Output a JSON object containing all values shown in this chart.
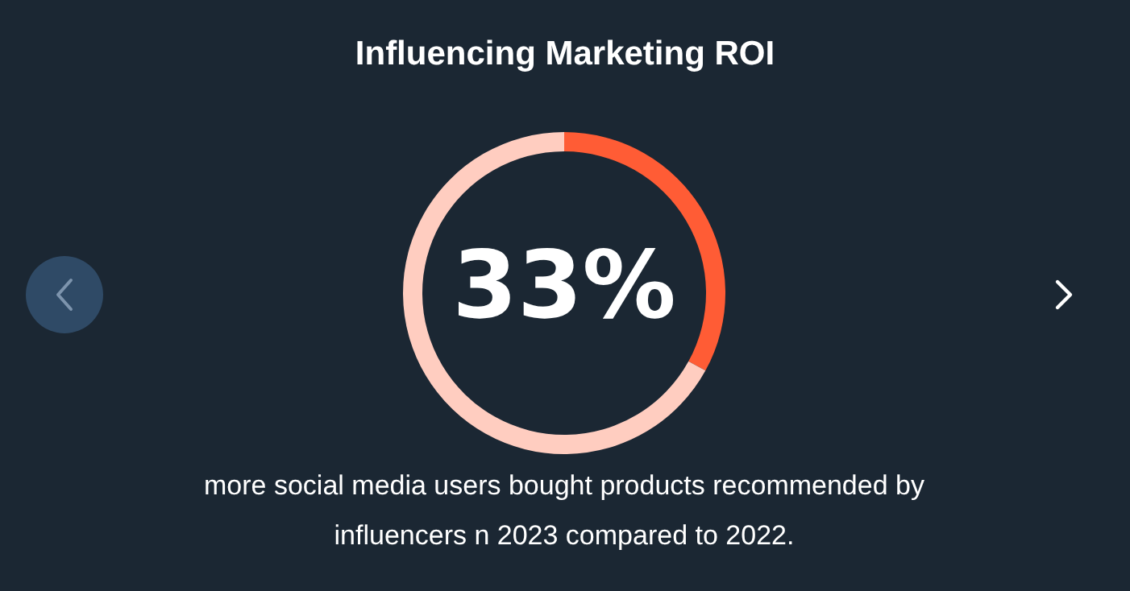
{
  "chart_data": {
    "type": "donut",
    "title": "Influencing Marketing ROI",
    "categories": [
      null,
      null
    ],
    "values": [
      33,
      67
    ],
    "colors": [
      "#ff5c35",
      "#ffcdc0"
    ],
    "value_labels": [
      "33%",
      null
    ],
    "annotations": [
      "more social media users bought products recommended by influencers n 2023 compared to 2022."
    ]
  }
}
